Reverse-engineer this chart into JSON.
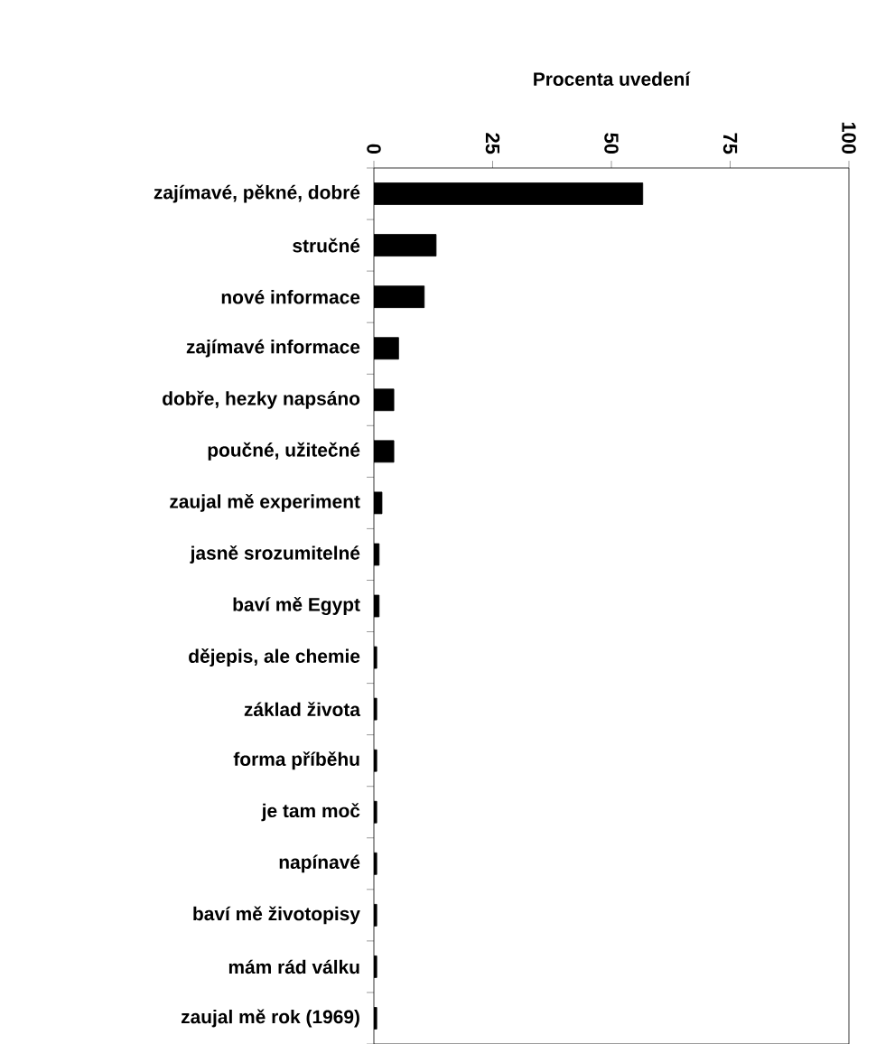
{
  "chart_data": {
    "type": "bar",
    "orientation": "horizontal",
    "xlabel": "Procenta uvedení",
    "categories": [
      "zajímavé, pěkné, dobré",
      "stručné",
      "nové informace",
      "zajímavé informace",
      "dobře, hezky napsáno",
      "poučné, užitečné",
      "zaujal mě experiment",
      "jasně srozumitelné",
      "baví mě Egypt",
      "dějepis, ale chemie",
      "základ života",
      "forma příběhu",
      "je tam moč",
      "napínavé",
      "baví mě životopisy",
      "mám rád válku",
      "zaujal mě rok (1969)"
    ],
    "values": [
      56.6,
      13.1,
      10.6,
      5.2,
      4.2,
      4.2,
      1.7,
      1.1,
      1.1,
      0.6,
      0.6,
      0.6,
      0.6,
      0.6,
      0.6,
      0.6,
      0.6
    ],
    "color": "#000000",
    "xlim": [
      0,
      100
    ],
    "xticks": [
      0,
      25,
      50,
      75,
      100
    ]
  }
}
